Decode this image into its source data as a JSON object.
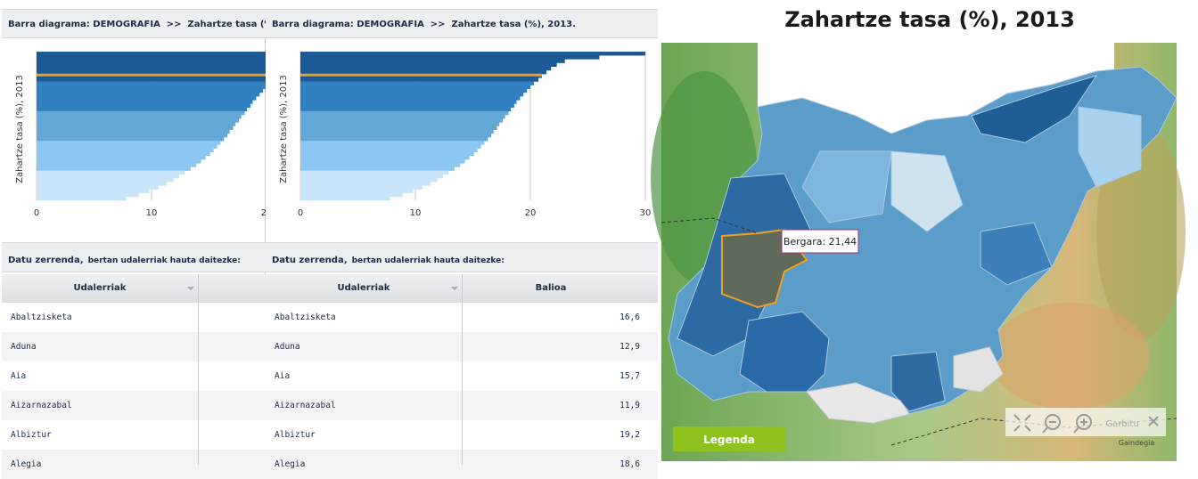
{
  "panel": {
    "header": "Barra diagrama: DEMOGRAFIA  >>  Zahartze tasa (%), 2013.",
    "list_title": "Datu zerrenda,",
    "list_subtitle": "bertan udalerriak hauta daitezke:"
  },
  "chart_data": {
    "type": "bar",
    "orientation": "horizontal",
    "ylabel": "Zahartze tasa (%), 2013",
    "values": [
      30,
      26,
      23,
      22.3,
      21.8,
      21.4,
      21,
      20.7,
      20.3,
      20,
      19.7,
      19.4,
      19.1,
      18.8,
      18.6,
      18.3,
      18.1,
      17.8,
      17.6,
      17.3,
      17.1,
      16.8,
      16.6,
      16.3,
      16,
      15.7,
      15.4,
      15.1,
      14.7,
      14.3,
      13.9,
      13.4,
      12.9,
      12.4,
      11.9,
      11.3,
      10.6,
      9.8,
      8.9,
      7.8
    ],
    "colors": [
      "#1b5a96",
      "#1b5a96",
      "#1b5a96",
      "#1b5a96",
      "#1b5a96",
      "#1b5a96",
      "#1b5a96",
      "#1b5a96",
      "#2f7fc1",
      "#2f7fc1",
      "#2f7fc1",
      "#2f7fc1",
      "#2f7fc1",
      "#2f7fc1",
      "#2f7fc1",
      "#2f7fc1",
      "#64a8d8",
      "#64a8d8",
      "#64a8d8",
      "#64a8d8",
      "#64a8d8",
      "#64a8d8",
      "#64a8d8",
      "#64a8d8",
      "#8ec6f2",
      "#8ec6f2",
      "#8ec6f2",
      "#8ec6f2",
      "#8ec6f2",
      "#8ec6f2",
      "#8ec6f2",
      "#8ec6f2",
      "#c8e4f8",
      "#c8e4f8",
      "#c8e4f8",
      "#c8e4f8",
      "#c8e4f8",
      "#c8e4f8",
      "#c8e4f8",
      "#c8e4f8"
    ],
    "xlim": [
      0,
      30
    ],
    "xticks": [
      0,
      10,
      20,
      30
    ],
    "grid": true
  },
  "table": {
    "headers": [
      "Udalerriak",
      "Balioa"
    ],
    "rows": [
      [
        "Abaltzisketa",
        "16,6"
      ],
      [
        "Aduna",
        "12,9"
      ],
      [
        "Aia",
        "15,7"
      ],
      [
        "Aizarnazabal",
        "11,9"
      ],
      [
        "Albiztur",
        "19,2"
      ],
      [
        "Alegia",
        "18,6"
      ]
    ]
  },
  "map": {
    "title": "Zahartze tasa (%), 2013",
    "tooltip": "Bergara: 21,44",
    "legend_button": "Legenda",
    "clear": "Garbitu",
    "credit": "Gaindegia"
  }
}
